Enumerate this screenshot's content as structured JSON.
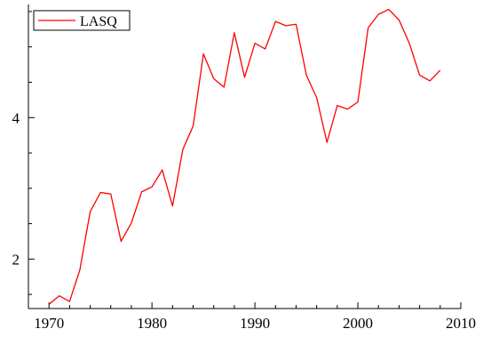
{
  "chart_data": {
    "type": "line",
    "title": "",
    "xlabel": "",
    "ylabel": "",
    "xlim": [
      1968,
      2010
    ],
    "ylim": [
      1.3,
      5.6
    ],
    "x_ticks": [
      1970,
      1980,
      1990,
      2000,
      2010
    ],
    "y_ticks": [
      2,
      4
    ],
    "x_tick_labels": [
      "1970",
      "1980",
      "1990",
      "2000",
      "2010"
    ],
    "y_tick_labels": [
      "2",
      "4"
    ],
    "grid": false,
    "legend": {
      "position": "top-left",
      "entries": [
        "LASQ"
      ]
    },
    "series": [
      {
        "name": "LASQ",
        "color": "#ff0000",
        "x": [
          1970,
          1971,
          1972,
          1973,
          1974,
          1975,
          1976,
          1977,
          1978,
          1979,
          1980,
          1981,
          1982,
          1983,
          1984,
          1985,
          1986,
          1987,
          1988,
          1989,
          1990,
          1991,
          1992,
          1993,
          1994,
          1995,
          1996,
          1997,
          1998,
          1999,
          2000,
          2001,
          2002,
          2003,
          2004,
          2005,
          2006,
          2007,
          2008
        ],
        "values": [
          1.36,
          1.48,
          1.4,
          1.85,
          2.67,
          2.94,
          2.92,
          2.25,
          2.51,
          2.95,
          3.02,
          3.26,
          2.75,
          3.55,
          3.88,
          4.9,
          4.55,
          4.43,
          5.2,
          4.57,
          5.05,
          4.97,
          5.36,
          5.3,
          5.32,
          4.6,
          4.28,
          3.65,
          4.17,
          4.12,
          4.22,
          5.27,
          5.46,
          5.53,
          5.38,
          5.05,
          4.6,
          4.52,
          4.67
        ]
      }
    ]
  }
}
